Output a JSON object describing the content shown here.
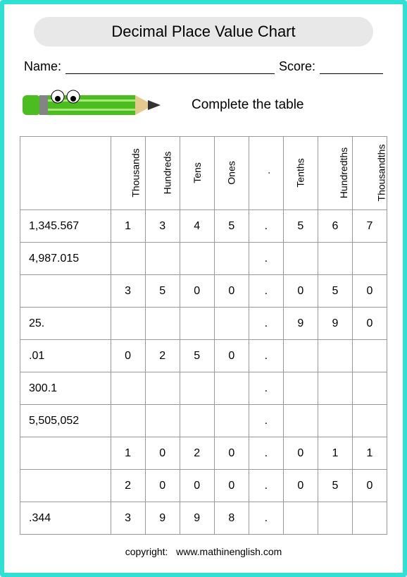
{
  "title": "Decimal Place Value Chart",
  "name_label": "Name:",
  "score_label": "Score:",
  "instruction": "Complete the table",
  "columns": [
    "Thousands",
    "Hundreds",
    "Tens",
    "Ones",
    ".",
    "Tenths",
    "Hundredths",
    "Thousandths"
  ],
  "pencil": {
    "body_color": "#4bbd1f",
    "band_color": "#848484",
    "tip_wood": "#e6c98c",
    "tip_lead": "#333333",
    "eye_white": "#ffffff",
    "eye_black": "#000000",
    "stripe_color": "#a7e87a"
  },
  "rows": [
    {
      "num": "1,345.567",
      "cells": [
        "1",
        "3",
        "4",
        "5",
        ".",
        "5",
        "6",
        "7"
      ]
    },
    {
      "num": "4,987.015",
      "cells": [
        "",
        "",
        "",
        "",
        ".",
        "",
        "",
        ""
      ]
    },
    {
      "num": "",
      "cells": [
        "3",
        "5",
        "0",
        "0",
        ".",
        "0",
        "5",
        "0"
      ]
    },
    {
      "num": "25.",
      "cells": [
        "",
        "",
        "",
        "",
        ".",
        "9",
        "9",
        "0"
      ]
    },
    {
      "num": ".01",
      "cells": [
        "0",
        "2",
        "5",
        "0",
        ".",
        "",
        "",
        ""
      ]
    },
    {
      "num": "300.1",
      "cells": [
        "",
        "",
        "",
        "",
        ".",
        "",
        "",
        ""
      ]
    },
    {
      "num": "5,505,052",
      "cells": [
        "",
        "",
        "",
        "",
        ".",
        "",
        "",
        ""
      ]
    },
    {
      "num": "",
      "cells": [
        "1",
        "0",
        "2",
        "0",
        ".",
        "0",
        "1",
        "1"
      ]
    },
    {
      "num": "",
      "cells": [
        "2",
        "0",
        "0",
        "0",
        ".",
        "0",
        "5",
        "0"
      ]
    },
    {
      "num": ".344",
      "cells": [
        "3",
        "9",
        "9",
        "8",
        ".",
        "",
        "",
        ""
      ]
    }
  ],
  "copyright_label": "copyright:",
  "copyright_site": "www.mathinenglish.com"
}
